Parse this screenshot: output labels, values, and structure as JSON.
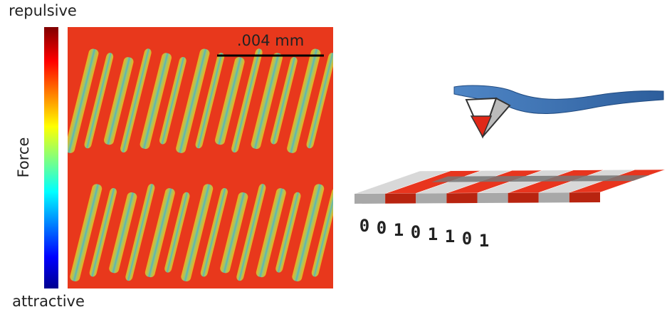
{
  "colorbar": {
    "top_label": "repulsive",
    "label": "Force",
    "bottom_label": "attractive"
  },
  "image": {
    "scale_bar_label": ".004 mm"
  },
  "diagram": {
    "bits": [
      "0",
      "0",
      "1",
      "0",
      "1",
      "1",
      "0",
      "1"
    ]
  }
}
